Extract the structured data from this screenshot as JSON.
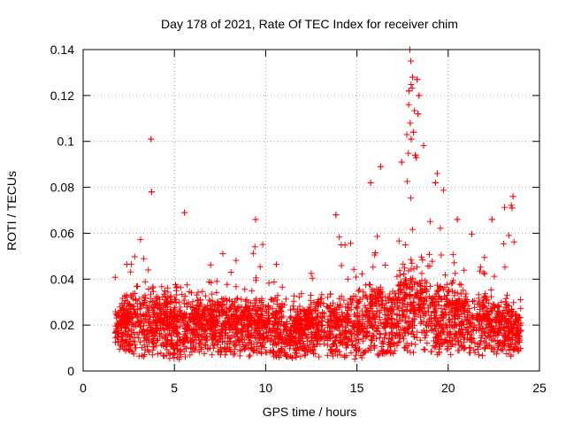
{
  "chart_data": {
    "type": "scatter",
    "title": "Day 178 of 2021, Rate Of TEC Index for receiver chim",
    "xlabel": "GPS time / hours",
    "ylabel": "ROTI / TECUs",
    "xlim": [
      0,
      25
    ],
    "ylim": [
      0,
      0.14
    ],
    "x_ticks": [
      0,
      5,
      10,
      15,
      20,
      25
    ],
    "x_tick_labels": [
      "0",
      "5",
      "10",
      "15",
      "20",
      "25"
    ],
    "y_ticks": [
      0,
      0.02,
      0.04,
      0.06,
      0.08,
      0.1,
      0.12,
      0.14
    ],
    "y_tick_labels": [
      "0",
      "0.02",
      "0.04",
      "0.06",
      "0.08",
      "0.1",
      "0.12",
      "0.14"
    ],
    "grid": true,
    "marker": "+",
    "series_color": "#ff0000",
    "data_range": {
      "x_start": 1.75,
      "x_end": 24.0
    },
    "envelope": [
      {
        "x": 1.8,
        "min": 0.01,
        "base": 0.02,
        "max": 0.042
      },
      {
        "x": 2.5,
        "min": 0.008,
        "base": 0.021,
        "max": 0.054
      },
      {
        "x": 3.0,
        "min": 0.006,
        "base": 0.022,
        "max": 0.057
      },
      {
        "x": 3.5,
        "min": 0.006,
        "base": 0.021,
        "max": 0.058
      },
      {
        "x": 3.8,
        "min": 0.007,
        "base": 0.022,
        "max": 0.078
      },
      {
        "x": 4.3,
        "min": 0.007,
        "base": 0.021,
        "max": 0.06
      },
      {
        "x": 5.0,
        "min": 0.004,
        "base": 0.02,
        "max": 0.045
      },
      {
        "x": 5.5,
        "min": 0.006,
        "base": 0.02,
        "max": 0.069
      },
      {
        "x": 6.0,
        "min": 0.006,
        "base": 0.02,
        "max": 0.046
      },
      {
        "x": 7.0,
        "min": 0.007,
        "base": 0.021,
        "max": 0.05
      },
      {
        "x": 8.0,
        "min": 0.007,
        "base": 0.022,
        "max": 0.055
      },
      {
        "x": 9.0,
        "min": 0.006,
        "base": 0.02,
        "max": 0.058
      },
      {
        "x": 9.5,
        "min": 0.007,
        "base": 0.021,
        "max": 0.066
      },
      {
        "x": 10.5,
        "min": 0.006,
        "base": 0.02,
        "max": 0.06
      },
      {
        "x": 11.3,
        "min": 0.005,
        "base": 0.017,
        "max": 0.035
      },
      {
        "x": 12.0,
        "min": 0.006,
        "base": 0.019,
        "max": 0.045
      },
      {
        "x": 13.0,
        "min": 0.006,
        "base": 0.02,
        "max": 0.049
      },
      {
        "x": 14.0,
        "min": 0.006,
        "base": 0.02,
        "max": 0.067
      },
      {
        "x": 15.0,
        "min": 0.005,
        "base": 0.021,
        "max": 0.058
      },
      {
        "x": 15.8,
        "min": 0.006,
        "base": 0.024,
        "max": 0.082
      },
      {
        "x": 16.3,
        "min": 0.007,
        "base": 0.025,
        "max": 0.088
      },
      {
        "x": 17.0,
        "min": 0.007,
        "base": 0.025,
        "max": 0.06
      },
      {
        "x": 17.6,
        "min": 0.008,
        "base": 0.028,
        "max": 0.09
      },
      {
        "x": 18.0,
        "min": 0.008,
        "base": 0.03,
        "max": 0.14
      },
      {
        "x": 18.5,
        "min": 0.008,
        "base": 0.028,
        "max": 0.12
      },
      {
        "x": 19.5,
        "min": 0.007,
        "base": 0.025,
        "max": 0.085
      },
      {
        "x": 20.5,
        "min": 0.007,
        "base": 0.023,
        "max": 0.066
      },
      {
        "x": 21.5,
        "min": 0.007,
        "base": 0.022,
        "max": 0.058
      },
      {
        "x": 22.5,
        "min": 0.006,
        "base": 0.021,
        "max": 0.066
      },
      {
        "x": 23.5,
        "min": 0.006,
        "base": 0.019,
        "max": 0.076
      },
      {
        "x": 24.0,
        "min": 0.008,
        "base": 0.017,
        "max": 0.03
      }
    ],
    "outliers": [
      {
        "x": 3.72,
        "y": 0.101
      },
      {
        "x": 3.75,
        "y": 0.078
      },
      {
        "x": 5.55,
        "y": 0.069
      },
      {
        "x": 9.45,
        "y": 0.066
      },
      {
        "x": 13.85,
        "y": 0.068
      },
      {
        "x": 15.75,
        "y": 0.082
      },
      {
        "x": 16.3,
        "y": 0.089
      },
      {
        "x": 17.45,
        "y": 0.091
      },
      {
        "x": 17.9,
        "y": 0.14
      },
      {
        "x": 17.95,
        "y": 0.135
      },
      {
        "x": 18.05,
        "y": 0.128
      },
      {
        "x": 17.85,
        "y": 0.122
      },
      {
        "x": 18.3,
        "y": 0.127
      },
      {
        "x": 18.4,
        "y": 0.12
      },
      {
        "x": 18.35,
        "y": 0.112
      },
      {
        "x": 17.92,
        "y": 0.108
      },
      {
        "x": 18.1,
        "y": 0.104
      },
      {
        "x": 17.97,
        "y": 0.101
      },
      {
        "x": 18.2,
        "y": 0.094
      },
      {
        "x": 18.25,
        "y": 0.093
      },
      {
        "x": 19.4,
        "y": 0.086
      },
      {
        "x": 19.3,
        "y": 0.082
      },
      {
        "x": 20.5,
        "y": 0.066
      },
      {
        "x": 22.4,
        "y": 0.066
      },
      {
        "x": 23.55,
        "y": 0.076
      },
      {
        "x": 23.5,
        "y": 0.071
      }
    ]
  }
}
